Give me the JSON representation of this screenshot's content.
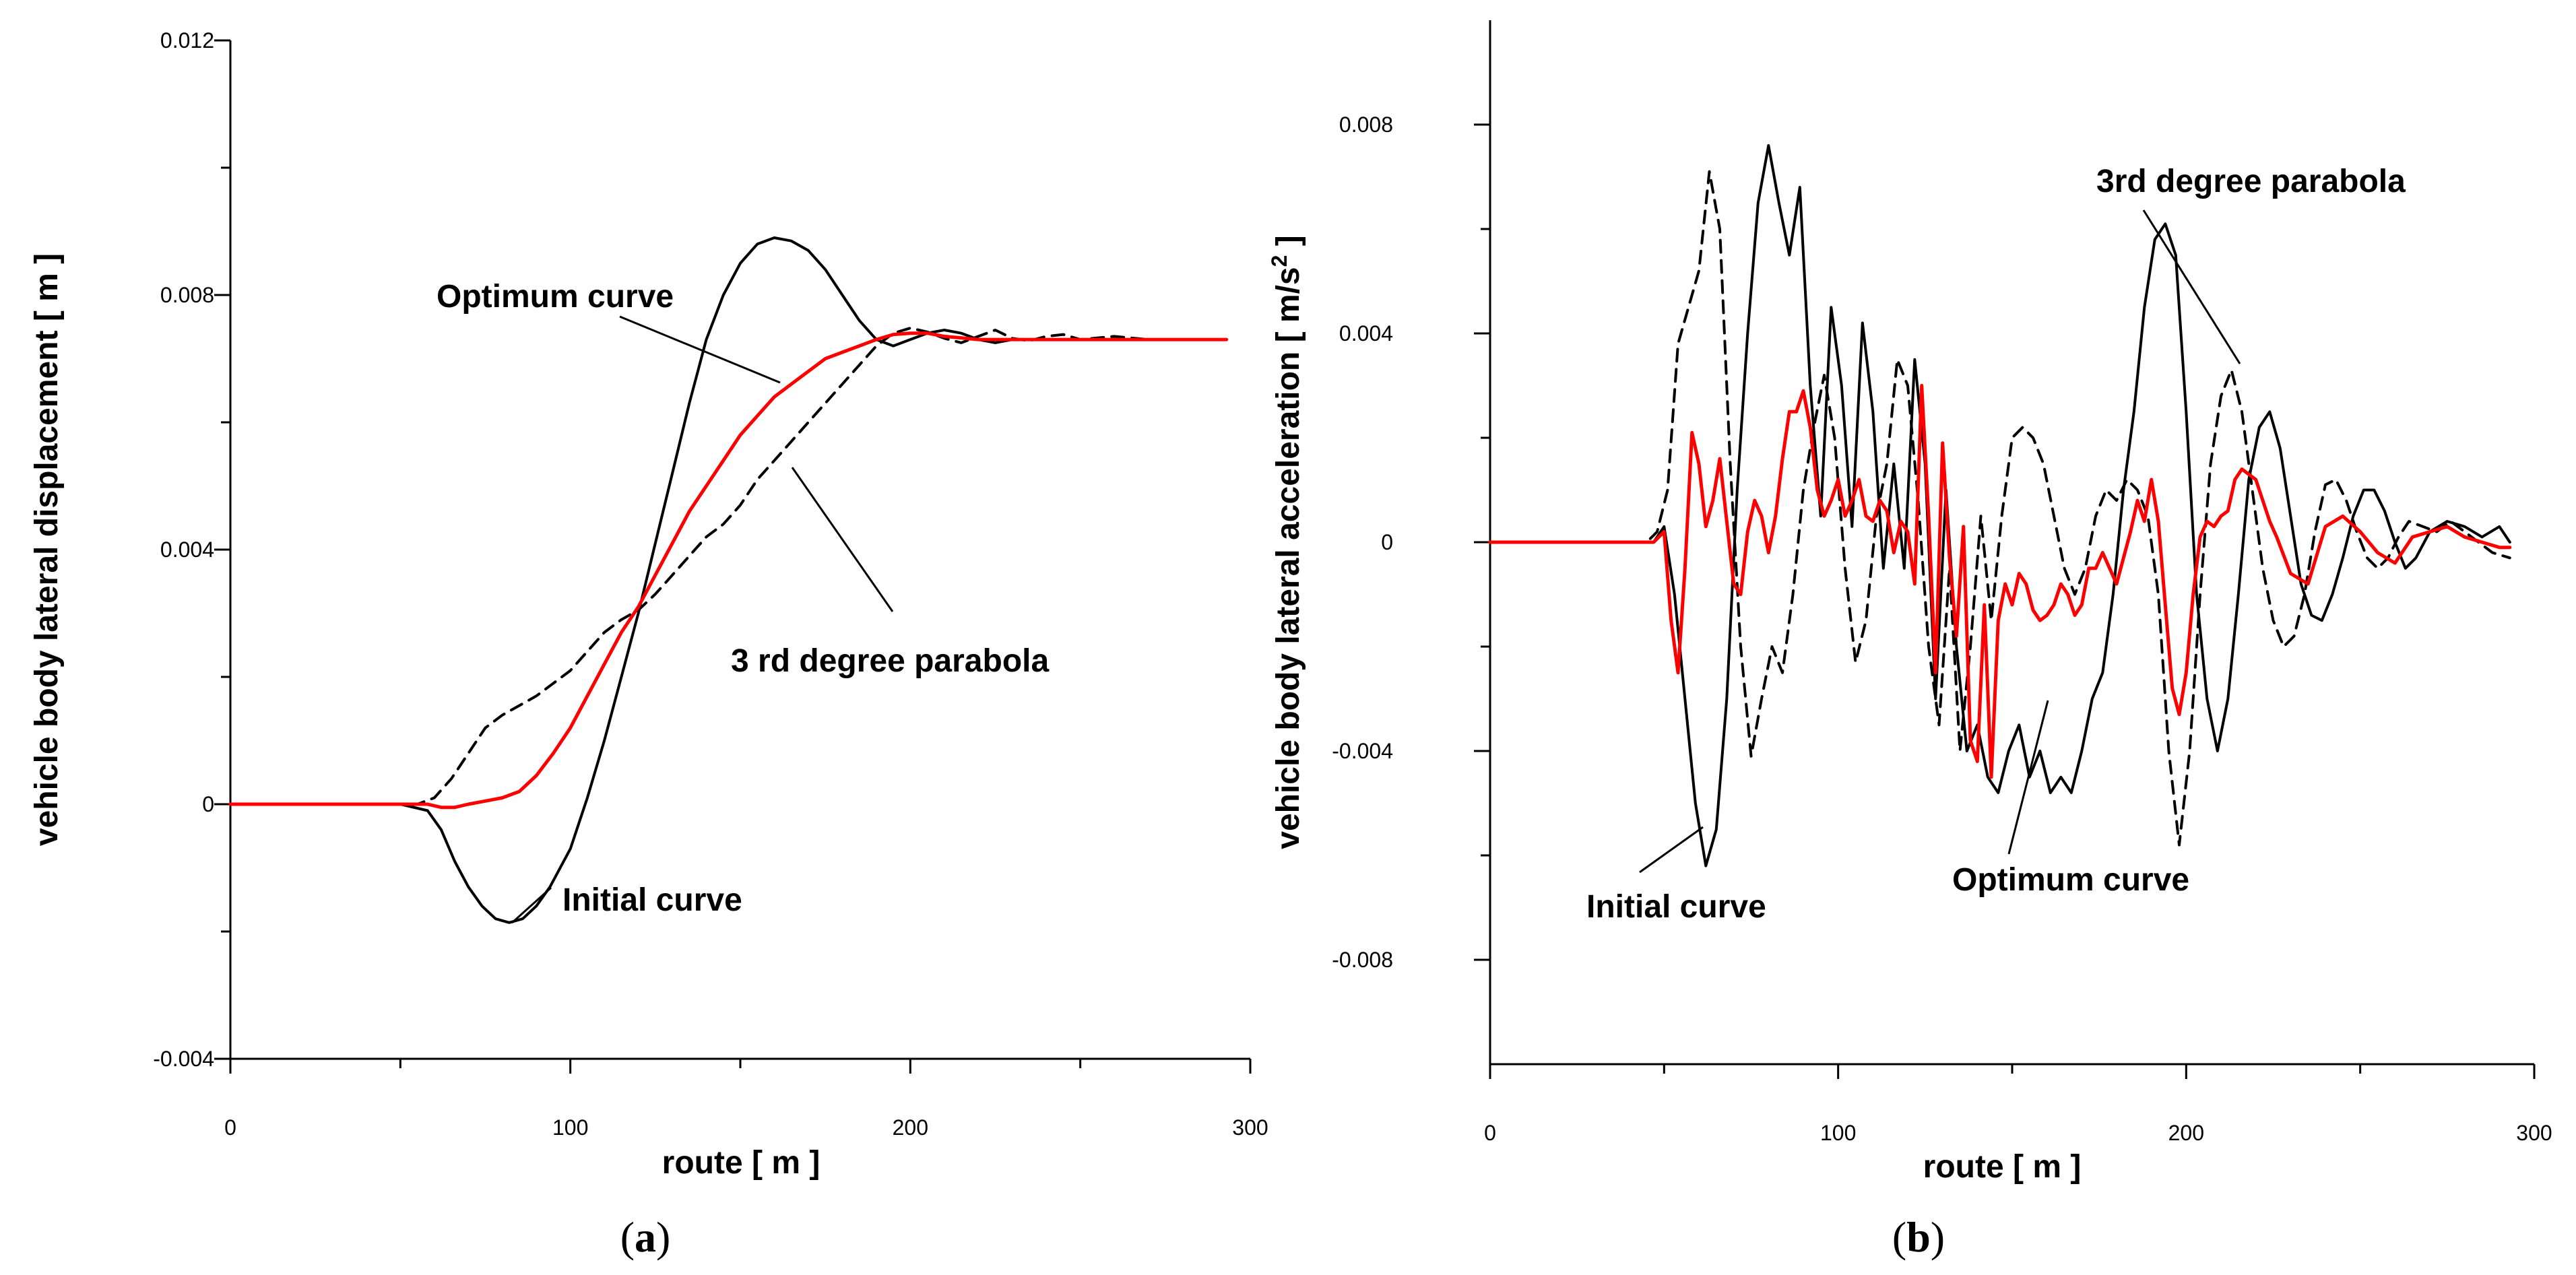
{
  "chart_data": [
    {
      "type": "line",
      "panel_label_open": "(",
      "panel_label_letter": "a",
      "panel_label_close": ")",
      "xlabel": "route [ m ]",
      "ylabel": "vehicle body lateral displacement [ m ]",
      "xlim": [
        0,
        300
      ],
      "ylim": [
        -0.004,
        0.012
      ],
      "x_ticks": [
        0,
        100,
        200,
        300
      ],
      "x_tick_labels": [
        "0",
        "100",
        "200",
        "300"
      ],
      "y_ticks": [
        -0.004,
        0,
        0.004,
        0.008,
        0.012
      ],
      "y_tick_labels": [
        "-0.004",
        "0",
        "0.004",
        "0.008",
        "0.012"
      ],
      "x_minor_step": 50,
      "y_minor_step": 0.002,
      "series": [
        {
          "name": "Initial curve",
          "color": "#000000",
          "style": "solid",
          "x": [
            0,
            50,
            58,
            62,
            66,
            70,
            74,
            78,
            82,
            86,
            90,
            94,
            100,
            105,
            110,
            115,
            120,
            125,
            130,
            135,
            140,
            145,
            150,
            155,
            160,
            165,
            170,
            175,
            180,
            185,
            190,
            195,
            200,
            205,
            210,
            215,
            220,
            225,
            230,
            240,
            250,
            260,
            270,
            280,
            290,
            293
          ],
          "y": [
            0,
            0,
            -0.0001,
            -0.0004,
            -0.0009,
            -0.0013,
            -0.0016,
            -0.0018,
            -0.00186,
            -0.0018,
            -0.0016,
            -0.0013,
            -0.0007,
            0.0001,
            0.001,
            0.002,
            0.003,
            0.0041,
            0.0052,
            0.0063,
            0.0073,
            0.008,
            0.0085,
            0.0088,
            0.0089,
            0.00885,
            0.0087,
            0.0084,
            0.008,
            0.0076,
            0.0073,
            0.0072,
            0.0073,
            0.0074,
            0.00745,
            0.0074,
            0.0073,
            0.00725,
            0.0073,
            0.0073,
            0.0073,
            0.0073,
            0.0073,
            0.0073,
            0.0073,
            0.0073
          ]
        },
        {
          "name": "3 rd degree parabola",
          "color": "#000000",
          "style": "dashed",
          "x": [
            0,
            55,
            60,
            65,
            70,
            75,
            80,
            85,
            90,
            95,
            100,
            105,
            110,
            115,
            120,
            125,
            130,
            135,
            140,
            145,
            150,
            155,
            160,
            165,
            170,
            175,
            180,
            185,
            190,
            195,
            200,
            205,
            210,
            215,
            220,
            225,
            230,
            235,
            240,
            245,
            250,
            260,
            270,
            280,
            293
          ],
          "y": [
            0,
            0,
            0.0001,
            0.0004,
            0.0008,
            0.0012,
            0.0014,
            0.00155,
            0.0017,
            0.0019,
            0.0021,
            0.0024,
            0.0027,
            0.0029,
            0.00305,
            0.0033,
            0.0036,
            0.0039,
            0.0042,
            0.0044,
            0.0047,
            0.0051,
            0.0054,
            0.0057,
            0.006,
            0.0063,
            0.0066,
            0.0069,
            0.0072,
            0.0074,
            0.00748,
            0.00742,
            0.00732,
            0.00725,
            0.00735,
            0.00745,
            0.00732,
            0.00728,
            0.00735,
            0.00738,
            0.0073,
            0.00735,
            0.0073,
            0.0073,
            0.0073
          ]
        },
        {
          "name": "Optimum curve",
          "color": "#ff0000",
          "style": "solid",
          "x": [
            0,
            58,
            62,
            66,
            70,
            75,
            80,
            85,
            90,
            95,
            100,
            105,
            110,
            115,
            120,
            125,
            130,
            135,
            140,
            145,
            150,
            155,
            160,
            165,
            170,
            175,
            180,
            185,
            190,
            195,
            200,
            205,
            210,
            220,
            230,
            240,
            250,
            260,
            270,
            280,
            293
          ],
          "y": [
            0,
            0,
            -5e-05,
            -5e-05,
            0,
            5e-05,
            0.0001,
            0.0002,
            0.00045,
            0.0008,
            0.0012,
            0.0017,
            0.0022,
            0.0027,
            0.0031,
            0.0036,
            0.0041,
            0.0046,
            0.005,
            0.0054,
            0.0058,
            0.0061,
            0.0064,
            0.0066,
            0.0068,
            0.007,
            0.0071,
            0.0072,
            0.0073,
            0.00738,
            0.0074,
            0.0074,
            0.00735,
            0.0073,
            0.0073,
            0.0073,
            0.0073,
            0.0073,
            0.0073,
            0.0073,
            0.0073
          ]
        }
      ],
      "annotations": [
        {
          "text": "Optimum curve",
          "at": [
            165,
            0.0066
          ]
        },
        {
          "text": "3 rd degree parabola",
          "at": [
            165,
            0.0053
          ]
        },
        {
          "text": "Initial curve",
          "at": [
            82,
            -0.0018
          ]
        }
      ]
    },
    {
      "type": "line",
      "panel_label_open": "(",
      "panel_label_letter": "b",
      "panel_label_close": ")",
      "xlabel": "route [ m ]",
      "ylabel_main": "vehicle body lateral acceleration [ m/s",
      "ylabel_sup": "2",
      "ylabel_end": " ]",
      "xlim": [
        0,
        300
      ],
      "ylim": [
        -0.01,
        0.01
      ],
      "x_ticks": [
        0,
        100,
        200,
        300
      ],
      "x_tick_labels": [
        "0",
        "100",
        "200",
        "300"
      ],
      "y_ticks": [
        -0.008,
        -0.004,
        0,
        0.004,
        0.008
      ],
      "y_tick_labels": [
        "-0.008",
        "-0.004",
        "0",
        "0.004",
        "0.008"
      ],
      "x_minor_step": 50,
      "y_minor_step": 0.002,
      "series": [
        {
          "name": "Initial curve",
          "color": "#000000",
          "style": "solid",
          "x": [
            0,
            47,
            50,
            53,
            56,
            59,
            62,
            65,
            68,
            71,
            74,
            77,
            80,
            83,
            86,
            89,
            92,
            95,
            98,
            101,
            104,
            107,
            110,
            113,
            116,
            119,
            122,
            125,
            128,
            131,
            134,
            137,
            140,
            143,
            146,
            149,
            152,
            155,
            158,
            161,
            164,
            167,
            170,
            173,
            176,
            179,
            182,
            185,
            188,
            191,
            194,
            197,
            200,
            203,
            206,
            209,
            212,
            215,
            218,
            221,
            224,
            227,
            230,
            233,
            236,
            239,
            242,
            245,
            248,
            251,
            254,
            257,
            260,
            263,
            266,
            270,
            275,
            280,
            285,
            290,
            293
          ],
          "y": [
            0,
            0,
            0.0003,
            -0.001,
            -0.003,
            -0.005,
            -0.0062,
            -0.0055,
            -0.003,
            0.001,
            0.004,
            0.0065,
            0.0076,
            0.0065,
            0.0055,
            0.0068,
            0.003,
            0.0005,
            0.0045,
            0.003,
            0.0003,
            0.0042,
            0.0025,
            -0.0005,
            0.0015,
            -0.0005,
            0.0035,
            0.0015,
            -0.003,
            0.001,
            -0.002,
            -0.004,
            -0.0035,
            -0.0045,
            -0.0048,
            -0.004,
            -0.0035,
            -0.0045,
            -0.004,
            -0.0048,
            -0.0045,
            -0.0048,
            -0.004,
            -0.003,
            -0.0025,
            -0.001,
            0.001,
            0.0025,
            0.0045,
            0.0058,
            0.0061,
            0.0055,
            0.0025,
            -0.001,
            -0.003,
            -0.004,
            -0.003,
            -0.001,
            0.0012,
            0.0022,
            0.0025,
            0.0018,
            0.0005,
            -0.0008,
            -0.0014,
            -0.0015,
            -0.001,
            -0.0003,
            0.0005,
            0.001,
            0.001,
            0.0006,
            0,
            -0.0005,
            -0.0003,
            0.0002,
            0.0004,
            0.0003,
            0.0001,
            0.0003,
            0
          ]
        },
        {
          "name": "3rd degree parabola",
          "color": "#000000",
          "style": "dashed",
          "x": [
            0,
            45,
            48,
            51,
            54,
            57,
            60,
            63,
            66,
            69,
            72,
            75,
            78,
            81,
            84,
            87,
            90,
            93,
            96,
            99,
            102,
            105,
            108,
            111,
            114,
            117,
            120,
            123,
            126,
            129,
            132,
            135,
            138,
            141,
            144,
            147,
            150,
            153,
            156,
            159,
            162,
            165,
            168,
            171,
            174,
            177,
            180,
            183,
            186,
            189,
            192,
            195,
            198,
            201,
            204,
            207,
            210,
            213,
            216,
            219,
            222,
            225,
            228,
            231,
            234,
            237,
            240,
            243,
            246,
            249,
            252,
            255,
            258,
            261,
            264,
            268,
            272,
            276,
            280,
            284,
            288,
            293
          ],
          "y": [
            0,
            0,
            0.0002,
            0.001,
            0.0038,
            0.0045,
            0.0052,
            0.0071,
            0.006,
            0.0015,
            -0.002,
            -0.0041,
            -0.003,
            -0.002,
            -0.0025,
            -0.001,
            0.001,
            0.0022,
            0.0032,
            0.002,
            -0.0005,
            -0.0023,
            -0.0015,
            0.0005,
            0.0015,
            0.0035,
            0.003,
            0.0008,
            -0.002,
            -0.0035,
            -0.0005,
            -0.004,
            -0.002,
            0.0005,
            -0.0015,
            0.0005,
            0.002,
            0.0022,
            0.002,
            0.0015,
            0.0005,
            -0.0005,
            -0.001,
            -0.0005,
            0.0005,
            0.001,
            0.0008,
            0.0012,
            0.001,
            0.0005,
            -0.001,
            -0.004,
            -0.0058,
            -0.004,
            -0.001,
            0.0015,
            0.0028,
            0.0033,
            0.0025,
            0.001,
            -0.0005,
            -0.0015,
            -0.002,
            -0.0018,
            -0.001,
            0.0002,
            0.0011,
            0.0012,
            0.0008,
            0.0002,
            -0.0003,
            -0.0005,
            -0.0003,
            0.0001,
            0.0004,
            0.0003,
            0.0002,
            0.0004,
            0.0002,
            0,
            -0.0002,
            -0.0003
          ]
        },
        {
          "name": "Optimum curve",
          "color": "#ff0000",
          "style": "solid",
          "x": [
            0,
            47,
            50,
            52,
            54,
            56,
            58,
            60,
            62,
            64,
            66,
            68,
            70,
            72,
            74,
            76,
            78,
            80,
            82,
            84,
            86,
            88,
            90,
            92,
            94,
            96,
            98,
            100,
            102,
            104,
            106,
            108,
            110,
            112,
            114,
            116,
            118,
            120,
            122,
            124,
            126,
            128,
            130,
            132,
            134,
            136,
            138,
            140,
            142,
            144,
            146,
            148,
            150,
            152,
            154,
            156,
            158,
            160,
            162,
            164,
            166,
            168,
            170,
            172,
            174,
            176,
            178,
            180,
            182,
            184,
            186,
            188,
            190,
            192,
            194,
            196,
            198,
            200,
            202,
            204,
            206,
            208,
            210,
            212,
            214,
            216,
            218,
            220,
            222,
            224,
            226,
            230,
            235,
            240,
            245,
            250,
            255,
            260,
            265,
            270,
            275,
            280,
            285,
            290,
            293
          ],
          "y": [
            0,
            0,
            0.0002,
            -0.0015,
            -0.0025,
            -0.0005,
            0.0021,
            0.0015,
            0.0003,
            0.0008,
            0.0016,
            0.0004,
            -0.0008,
            -0.001,
            0.0002,
            0.0008,
            0.0005,
            -0.0002,
            0.0005,
            0.0016,
            0.0025,
            0.0025,
            0.0029,
            0.0022,
            0.001,
            0.0005,
            0.0008,
            0.0012,
            0.0005,
            0.0008,
            0.0012,
            0.0005,
            0.0004,
            0.0008,
            0.0006,
            -0.0002,
            0.0004,
            0.0002,
            -0.0008,
            0.003,
            0.0005,
            -0.0025,
            0.0019,
            -0.0003,
            -0.0018,
            0.0003,
            -0.0038,
            -0.0042,
            -0.0012,
            -0.0045,
            -0.0015,
            -0.0008,
            -0.0012,
            -0.0006,
            -0.0008,
            -0.0013,
            -0.0015,
            -0.0014,
            -0.0012,
            -0.0008,
            -0.001,
            -0.0014,
            -0.0012,
            -0.0005,
            -0.0005,
            -0.0002,
            -0.0005,
            -0.0008,
            -0.0003,
            0.0002,
            0.0008,
            0.0004,
            0.0012,
            0.0004,
            -0.0012,
            -0.0028,
            -0.0033,
            -0.0025,
            -0.001,
            0.0001,
            0.0004,
            0.0003,
            0.0005,
            0.0006,
            0.0012,
            0.0014,
            0.0013,
            0.0012,
            0.0008,
            0.0004,
            0.0001,
            -0.0006,
            -0.0008,
            0.0003,
            0.0005,
            0.0002,
            -0.0002,
            -0.0004,
            0.0001,
            0.0002,
            0.0003,
            0.0001,
            0,
            -0.0001,
            -0.0001
          ]
        }
      ],
      "annotations": [
        {
          "text": "3rd degree parabola",
          "at": [
            216,
            0.0033
          ]
        },
        {
          "text": "Initial curve",
          "at": [
            62,
            -0.0062
          ]
        },
        {
          "text": "Optimum curve",
          "at": [
            160,
            -0.0048
          ]
        }
      ]
    }
  ]
}
